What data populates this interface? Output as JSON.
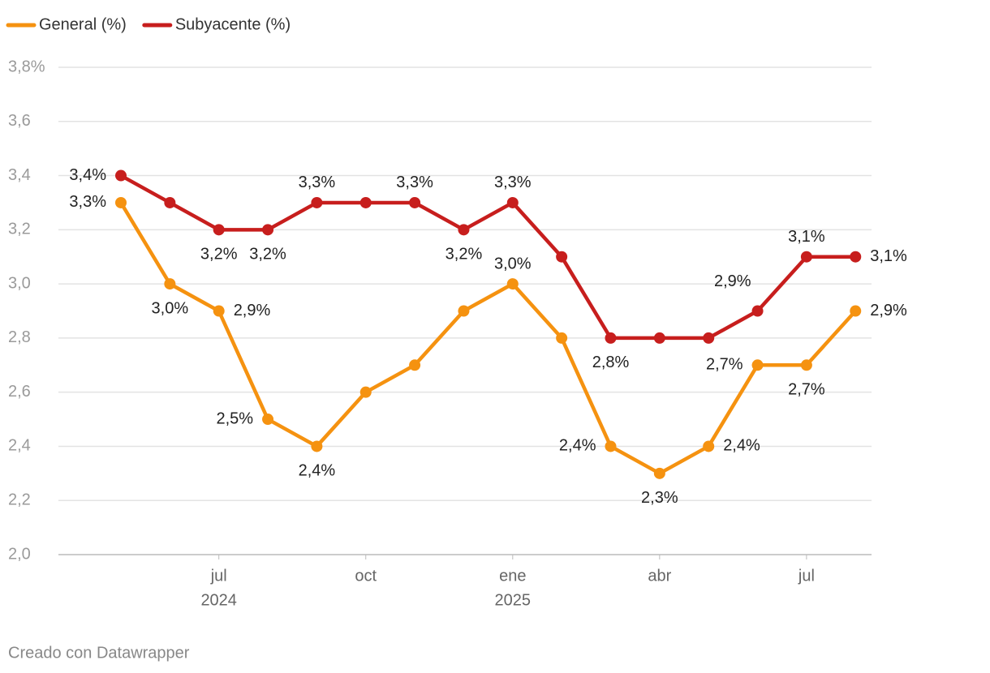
{
  "chart_data": {
    "type": "line",
    "x": [
      "2024-05",
      "2024-06",
      "2024-07",
      "2024-08",
      "2024-09",
      "2024-10",
      "2024-11",
      "2024-12",
      "2025-01",
      "2025-02",
      "2025-03",
      "2025-04",
      "2025-05",
      "2025-06",
      "2025-07",
      "2025-08"
    ],
    "xticks": [
      {
        "value": "2024-07",
        "label": "jul"
      },
      {
        "value": "2024-10",
        "label": "oct"
      },
      {
        "value": "2025-01",
        "label": "ene"
      },
      {
        "value": "2025-04",
        "label": "abr"
      },
      {
        "value": "2025-07",
        "label": "jul"
      }
    ],
    "x_year_labels": [
      {
        "value": "2024-07",
        "label": "2024"
      },
      {
        "value": "2025-01",
        "label": "2025"
      }
    ],
    "ylim": [
      2.0,
      3.8
    ],
    "yticks": [
      {
        "value": 2.0,
        "label": "2,0"
      },
      {
        "value": 2.2,
        "label": "2,2"
      },
      {
        "value": 2.4,
        "label": "2,4"
      },
      {
        "value": 2.6,
        "label": "2,6"
      },
      {
        "value": 2.8,
        "label": "2,8"
      },
      {
        "value": 3.0,
        "label": "3,0"
      },
      {
        "value": 3.2,
        "label": "3,2"
      },
      {
        "value": 3.4,
        "label": "3,4"
      },
      {
        "value": 3.6,
        "label": "3,6"
      },
      {
        "value": 3.8,
        "label": "3,8%"
      }
    ],
    "grid": true,
    "series": [
      {
        "name": "General (%)",
        "color": "#f59210",
        "values": [
          3.3,
          3.0,
          2.9,
          2.5,
          2.4,
          2.6,
          2.7,
          2.9,
          3.0,
          2.8,
          2.4,
          2.3,
          2.4,
          2.7,
          2.7,
          2.9
        ],
        "value_labels": [
          "3,3%",
          "3,0%",
          "2,9%",
          "2,5%",
          "2,4%",
          null,
          null,
          null,
          "3,0%",
          null,
          "2,4%",
          "2,3%",
          "2,4%",
          "2,7%",
          "2,7%",
          "2,9%"
        ]
      },
      {
        "name": "Subyacente (%)",
        "color": "#c71e1d",
        "values": [
          3.4,
          3.3,
          3.2,
          3.2,
          3.3,
          3.3,
          3.3,
          3.2,
          3.3,
          3.1,
          2.8,
          2.8,
          2.8,
          2.9,
          3.1,
          3.1
        ],
        "value_labels": [
          "3,4%",
          null,
          "3,2%",
          "3,2%",
          "3,3%",
          null,
          "3,3%",
          "3,2%",
          "3,3%",
          null,
          "2,8%",
          null,
          null,
          "2,9%",
          "3,1%",
          "3,1%"
        ]
      }
    ],
    "footer": "Creado con Datawrapper"
  }
}
